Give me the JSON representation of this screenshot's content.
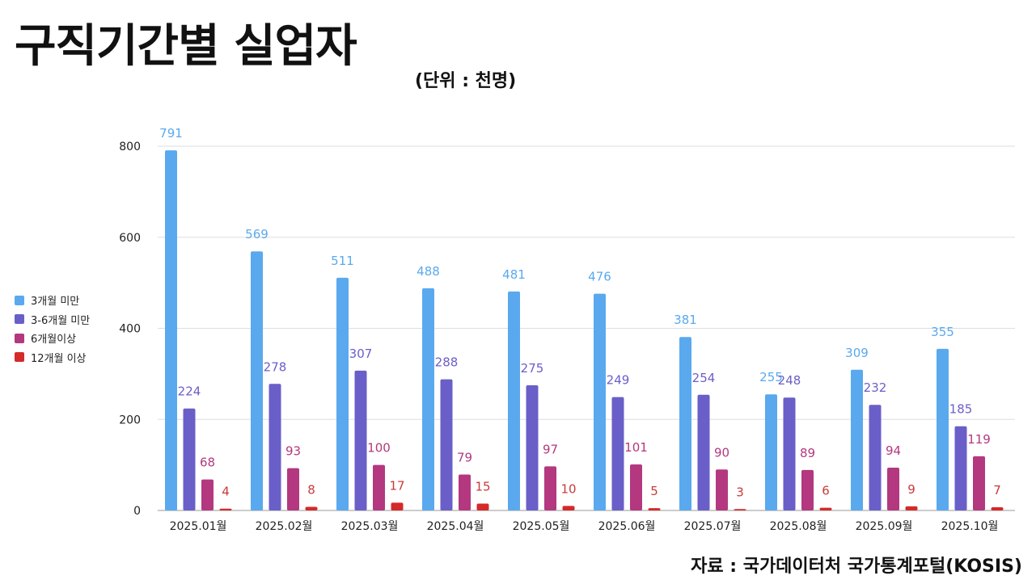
{
  "title": "구직기간별 실업자",
  "unit": "(단위 : 천명)",
  "source": "자료 : 국가데이터처 국가통계포털(KOSIS)",
  "chart_data": {
    "type": "bar",
    "categories": [
      "2025.01월",
      "2025.02월",
      "2025.03월",
      "2025.04월",
      "2025.05월",
      "2025.06월",
      "2025.07월",
      "2025.08월",
      "2025.09월",
      "2025.10월"
    ],
    "series": [
      {
        "name": "3개월 미만",
        "color": "#5aa9ee",
        "label_color": "#5aa9ee",
        "values": [
          791,
          569,
          511,
          488,
          481,
          476,
          381,
          255,
          309,
          355
        ]
      },
      {
        "name": "3-6개월 미만",
        "color": "#6a5fc8",
        "label_color": "#6a5fc8",
        "values": [
          224,
          278,
          307,
          288,
          275,
          249,
          254,
          248,
          232,
          185
        ]
      },
      {
        "name": "6개월이상",
        "color": "#b3387f",
        "label_color": "#b3387f",
        "values": [
          68,
          93,
          100,
          79,
          97,
          101,
          90,
          89,
          94,
          119
        ]
      },
      {
        "name": "12개월 이상",
        "color": "#d42a2a",
        "label_color": "#c93a3a",
        "values": [
          4,
          8,
          17,
          15,
          10,
          5,
          3,
          6,
          9,
          7
        ]
      }
    ],
    "ylim": [
      0,
      800
    ],
    "yticks": [
      0,
      200,
      400,
      600,
      800
    ],
    "grid": true,
    "legend_position": "left"
  }
}
